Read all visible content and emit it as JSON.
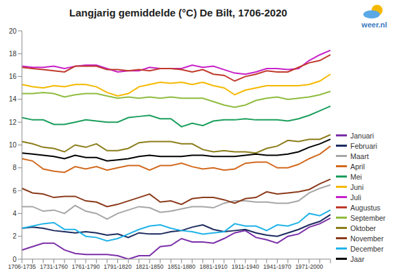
{
  "chart_data": {
    "type": "line",
    "title": "Langjarig gemiddelde (°C) De Bilt, 1706-2020",
    "annotations": [
      "weer.nl"
    ],
    "categories": [
      "1706-1735",
      null,
      null,
      "1731-1760",
      null,
      null,
      "1761-1790",
      null,
      null,
      "1791-1820",
      null,
      null,
      "1821-1850",
      null,
      null,
      "1851-1880",
      null,
      null,
      "1881-1910",
      null,
      null,
      "1911-1940",
      null,
      null,
      "1941-1970",
      null,
      null,
      "1971-2000",
      null,
      null
    ],
    "series": [
      {
        "name": "Januari",
        "color": "#7b2fa8",
        "values": [
          0.8,
          1.1,
          1.4,
          1.4,
          0.8,
          0.5,
          0.4,
          0.4,
          0.4,
          0.3,
          0.0,
          0.3,
          0.3,
          1.1,
          1.2,
          1.8,
          1.5,
          1.5,
          1.4,
          1.8,
          2.3,
          2.5,
          1.9,
          1.7,
          1.4,
          2.0,
          2.2,
          2.8,
          3.1,
          3.6
        ]
      },
      {
        "name": "Februari",
        "color": "#1b2a5e",
        "values": [
          2.7,
          2.8,
          2.7,
          2.5,
          2.4,
          2.3,
          2.4,
          2.3,
          2.1,
          2.2,
          1.9,
          2.3,
          2.2,
          2.2,
          2.4,
          2.5,
          2.8,
          3.0,
          2.6,
          2.4,
          2.5,
          2.6,
          2.3,
          2.1,
          2.0,
          2.3,
          2.6,
          3.0,
          3.3,
          3.9
        ]
      },
      {
        "name": "Maart",
        "color": "#a6a6a6",
        "values": [
          4.6,
          4.6,
          4.2,
          4.3,
          4.0,
          4.7,
          4.2,
          4.0,
          3.5,
          4.0,
          4.3,
          4.6,
          4.5,
          4.1,
          4.2,
          4.4,
          4.6,
          4.6,
          4.5,
          4.9,
          5.1,
          5.1,
          5.0,
          5.0,
          4.9,
          4.9,
          5.1,
          5.8,
          6.2,
          6.5
        ]
      },
      {
        "name": "April",
        "color": "#d2691e",
        "values": [
          8.8,
          8.6,
          7.9,
          7.7,
          7.6,
          8.1,
          7.9,
          8.1,
          7.8,
          8.0,
          8.2,
          8.2,
          7.8,
          8.2,
          8.2,
          8.4,
          8.1,
          7.9,
          8.0,
          7.8,
          7.9,
          8.4,
          8.5,
          8.5,
          8.0,
          8.0,
          8.3,
          8.8,
          9.2,
          9.9
        ]
      },
      {
        "name": "Mei",
        "color": "#1a9e5c",
        "values": [
          12.4,
          12.2,
          12.2,
          11.8,
          11.8,
          12.0,
          12.2,
          12.1,
          12.0,
          12.0,
          12.4,
          12.5,
          12.6,
          12.3,
          12.3,
          11.6,
          11.9,
          11.7,
          12.1,
          12.2,
          12.2,
          12.3,
          12.2,
          12.2,
          12.2,
          12.1,
          12.3,
          12.6,
          13.0,
          13.4
        ]
      },
      {
        "name": "Juni",
        "color": "#f5b800",
        "values": [
          15.3,
          15.1,
          15.0,
          15.2,
          15.1,
          15.3,
          15.3,
          15.1,
          14.6,
          14.3,
          14.5,
          15.1,
          15.3,
          15.5,
          15.4,
          15.5,
          15.3,
          15.5,
          15.2,
          15.0,
          14.4,
          14.8,
          15.0,
          15.2,
          15.2,
          15.2,
          15.2,
          15.3,
          15.6,
          16.2
        ]
      },
      {
        "name": "Juli",
        "color": "#c81fc8",
        "values": [
          16.9,
          16.8,
          16.8,
          16.9,
          16.7,
          16.9,
          17.0,
          17.0,
          16.7,
          16.4,
          16.5,
          16.5,
          16.8,
          16.7,
          16.7,
          16.7,
          17.0,
          16.8,
          16.9,
          16.6,
          16.3,
          16.2,
          16.4,
          16.7,
          16.7,
          16.6,
          16.7,
          17.4,
          17.9,
          18.3
        ]
      },
      {
        "name": "Augustus",
        "color": "#c0392b",
        "values": [
          16.8,
          16.7,
          16.6,
          16.5,
          16.4,
          16.9,
          16.9,
          16.9,
          16.6,
          16.6,
          16.5,
          16.6,
          16.5,
          16.7,
          16.7,
          16.6,
          16.4,
          16.6,
          16.2,
          16.1,
          15.6,
          16.0,
          16.2,
          16.5,
          16.4,
          16.4,
          16.8,
          17.2,
          17.4,
          17.9
        ]
      },
      {
        "name": "September",
        "color": "#8fbc3f",
        "values": [
          14.5,
          14.5,
          14.6,
          14.5,
          14.2,
          14.4,
          14.5,
          14.5,
          14.3,
          14.1,
          14.2,
          14.1,
          14.2,
          14.1,
          14.2,
          14.1,
          14.1,
          14.1,
          13.8,
          13.5,
          13.3,
          13.5,
          13.9,
          14.1,
          14.2,
          14.0,
          14.1,
          14.2,
          14.4,
          14.7
        ]
      },
      {
        "name": "Oktober",
        "color": "#8b7d1a",
        "values": [
          10.3,
          10.1,
          9.8,
          9.7,
          9.4,
          10.0,
          9.8,
          10.1,
          9.5,
          9.5,
          9.7,
          10.2,
          10.3,
          10.3,
          10.3,
          10.1,
          10.1,
          9.6,
          9.4,
          9.5,
          9.4,
          9.4,
          9.3,
          9.7,
          9.9,
          10.4,
          10.3,
          10.5,
          10.5,
          10.9
        ]
      },
      {
        "name": "November",
        "color": "#8b3a1a",
        "values": [
          6.2,
          5.8,
          5.7,
          5.4,
          5.5,
          5.5,
          5.1,
          5.0,
          4.6,
          4.8,
          5.1,
          5.4,
          5.7,
          5.0,
          5.1,
          4.8,
          5.3,
          5.4,
          5.4,
          5.2,
          4.9,
          5.3,
          5.4,
          5.9,
          5.7,
          5.8,
          5.9,
          6.1,
          6.6,
          7.0
        ]
      },
      {
        "name": "December",
        "color": "#1fb3e8",
        "values": [
          2.7,
          2.9,
          3.1,
          3.2,
          2.6,
          2.6,
          2.0,
          1.9,
          1.6,
          1.8,
          2.2,
          2.6,
          2.9,
          3.0,
          2.7,
          2.5,
          2.4,
          2.2,
          2.3,
          2.4,
          3.1,
          2.9,
          2.9,
          2.5,
          3.0,
          2.9,
          3.2,
          4.0,
          3.8,
          4.3
        ]
      },
      {
        "name": "Jaar",
        "color": "#000000",
        "values": [
          9.3,
          9.2,
          9.1,
          9.0,
          8.8,
          9.1,
          8.9,
          8.9,
          8.6,
          8.7,
          8.8,
          9.0,
          9.1,
          9.0,
          9.0,
          9.0,
          9.1,
          9.1,
          9.0,
          9.0,
          9.0,
          9.1,
          9.2,
          9.1,
          9.1,
          9.2,
          9.4,
          9.8,
          10.1,
          10.5
        ]
      }
    ],
    "ylim": [
      0,
      20
    ],
    "yticks": [
      0,
      2,
      4,
      6,
      8,
      10,
      12,
      14,
      16,
      18,
      20
    ],
    "grid": false,
    "legend": "right"
  }
}
